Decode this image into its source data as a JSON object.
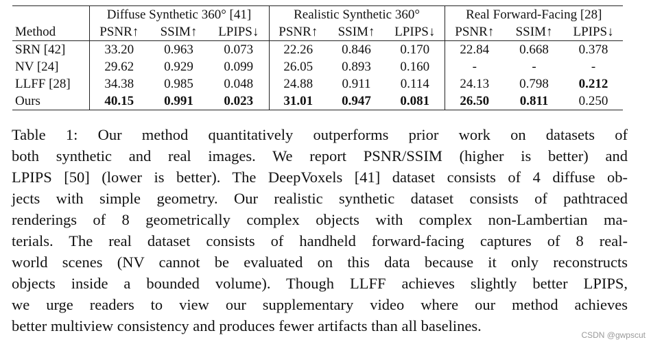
{
  "table": {
    "groups": [
      "Diffuse Synthetic 360° [41]",
      "Realistic Synthetic 360°",
      "Real Forward-Facing [28]"
    ],
    "columns": [
      "Method",
      "PSNR↑",
      "SSIM↑",
      "LPIPS↓",
      "PSNR↑",
      "SSIM↑",
      "LPIPS↓",
      "PSNR↑",
      "SSIM↑",
      "LPIPS↓"
    ],
    "rows": [
      [
        "SRN [42]",
        "33.20",
        "0.963",
        "0.073",
        "22.26",
        "0.846",
        "0.170",
        "22.84",
        "0.668",
        "0.378"
      ],
      [
        "NV [24]",
        "29.62",
        "0.929",
        "0.099",
        "26.05",
        "0.893",
        "0.160",
        "-",
        "-",
        "-"
      ],
      [
        "LLFF [28]",
        "34.38",
        "0.985",
        "0.048",
        "24.88",
        "0.911",
        "0.114",
        "24.13",
        "0.798",
        "0.212"
      ],
      [
        "Ours",
        "40.15",
        "0.991",
        "0.023",
        "31.01",
        "0.947",
        "0.081",
        "26.50",
        "0.811",
        "0.250"
      ]
    ]
  },
  "caption": {
    "lines": [
      "Table 1: Our method quantitatively outperforms prior work on datasets of",
      "both synthetic and real images. We report PSNR/SSIM (higher is better) and",
      "LPIPS [50] (lower is better). The DeepVoxels [41] dataset consists of 4 diffuse ob-",
      "jects with simple geometry. Our realistic synthetic dataset consists of pathtraced",
      "renderings of 8 geometrically complex objects with complex non-Lambertian ma-",
      "terials. The real dataset consists of handheld forward-facing captures of 8 real-",
      "world scenes (NV cannot be evaluated on this data because it only reconstructs",
      "objects inside a bounded volume). Though LLFF achieves slightly better LPIPS,",
      "we urge readers to view our supplementary video where our method achieves",
      "better multiview consistency and produces fewer artifacts than all baselines."
    ]
  },
  "watermark": "CSDN @gwpscut"
}
